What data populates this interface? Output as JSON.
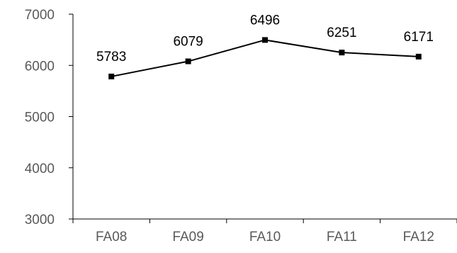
{
  "chart_data": {
    "type": "line",
    "categories": [
      "FA08",
      "FA09",
      "FA10",
      "FA11",
      "FA12"
    ],
    "values": [
      5783,
      6079,
      6496,
      6251,
      6171
    ],
    "data_labels": [
      "5783",
      "6079",
      "6496",
      "6251",
      "6171"
    ],
    "ylim": [
      3000,
      7000
    ],
    "yticks": [
      3000,
      4000,
      5000,
      6000,
      7000
    ],
    "ytick_labels": [
      "3000",
      "4000",
      "5000",
      "6000",
      "7000"
    ],
    "grid": false,
    "legend": "none",
    "marker": "square",
    "colors": {
      "line": "#000000",
      "marker": "#000000",
      "axis": "#000000",
      "tick_text": "#595959",
      "data_label_text": "#000000"
    }
  }
}
